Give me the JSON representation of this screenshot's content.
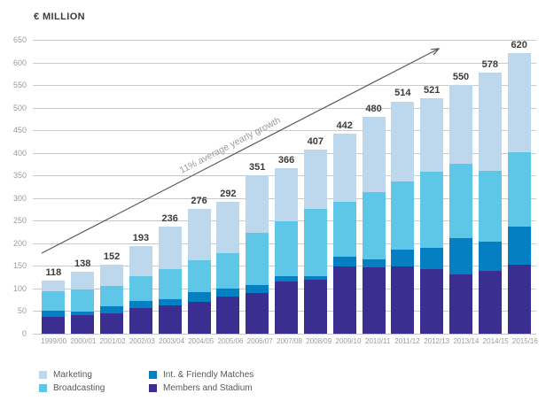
{
  "title": "€ MILLION",
  "growth_label": "11% average yearly growth",
  "colors": {
    "marketing": "#BDD7EC",
    "broadcasting": "#5EC6E6",
    "int_friendly": "#0480C2",
    "members_stadium": "#3A2F91",
    "gridline": "#C9C9C9",
    "axis_text": "#9B9B9B",
    "value_text": "#3C3C3B",
    "arrow": "#58585A"
  },
  "legend": [
    {
      "label": "Marketing",
      "color": "#BDD7EC"
    },
    {
      "label": "Broadcasting",
      "color": "#5EC6E6"
    },
    {
      "label": "Int. & Friendly Matches",
      "color": "#0480C2"
    },
    {
      "label": "Members and Stadium",
      "color": "#3A2F91"
    }
  ],
  "chart_data": {
    "type": "bar",
    "stacked": true,
    "title": "€ MILLION",
    "xlabel": "",
    "ylabel": "€ MILLION",
    "ylim": [
      0,
      650
    ],
    "ytick_step": 50,
    "yticks": [
      0,
      50,
      100,
      150,
      200,
      250,
      300,
      350,
      400,
      450,
      500,
      550,
      600,
      650
    ],
    "grid": true,
    "legend_position": "bottom",
    "annotation": "11% average yearly growth",
    "categories": [
      "1999/00",
      "2000/01",
      "2001/02",
      "2002/03",
      "2003/04",
      "2004/05",
      "2005/06",
      "2006/07",
      "2007/08",
      "2008/09",
      "2009/10",
      "2010/11",
      "2011/12",
      "2012/13",
      "2013/14",
      "2014/15",
      "2015/16"
    ],
    "totals": [
      118,
      138,
      152,
      193,
      236,
      276,
      292,
      351,
      366,
      407,
      442,
      480,
      514,
      521,
      550,
      578,
      620
    ],
    "series": [
      {
        "name": "Members and Stadium",
        "color": "#3A2F91",
        "values": [
          37,
          42,
          45,
          56,
          63,
          71,
          82,
          91,
          116,
          120,
          148,
          146,
          148,
          142,
          131,
          139,
          152
        ]
      },
      {
        "name": "Int. & Friendly Matches",
        "color": "#0480C2",
        "values": [
          13,
          7,
          15,
          16,
          13,
          21,
          18,
          16,
          12,
          8,
          23,
          18,
          39,
          48,
          80,
          64,
          85
        ]
      },
      {
        "name": "Broadcasting",
        "color": "#5EC6E6",
        "values": [
          44,
          49,
          45,
          56,
          67,
          71,
          79,
          117,
          121,
          148,
          120,
          149,
          150,
          168,
          165,
          157,
          165
        ]
      },
      {
        "name": "Marketing",
        "color": "#BDD7EC",
        "values": [
          24,
          40,
          47,
          65,
          93,
          113,
          113,
          127,
          117,
          131,
          151,
          167,
          177,
          163,
          174,
          218,
          218
        ]
      }
    ]
  }
}
